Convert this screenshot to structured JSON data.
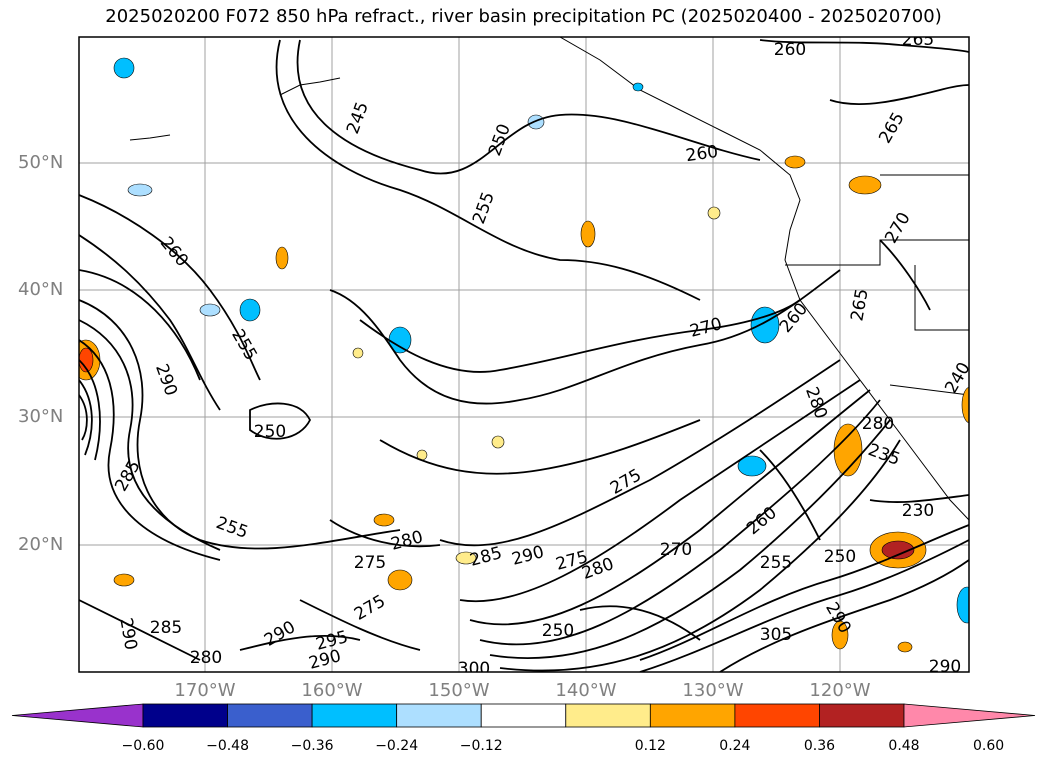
{
  "title": "2025020200 F072 850 hPa refract., river basin precipitation PC (2025020400 - 2025020700)",
  "map": {
    "lat_labels": [
      "50°N",
      "40°N",
      "30°N",
      "20°N"
    ],
    "lon_labels": [
      "170°W",
      "160°W",
      "150°W",
      "140°W",
      "130°W",
      "120°W"
    ],
    "contour_color": "#000000",
    "grid_color": "#a0a0a0",
    "contour_labels": [
      {
        "text": "245"
      },
      {
        "text": "250"
      },
      {
        "text": "255"
      },
      {
        "text": "260"
      },
      {
        "text": "260"
      },
      {
        "text": "260"
      },
      {
        "text": "265"
      },
      {
        "text": "265"
      },
      {
        "text": "270"
      },
      {
        "text": "270"
      },
      {
        "text": "260"
      },
      {
        "text": "255"
      },
      {
        "text": "290"
      },
      {
        "text": "285"
      },
      {
        "text": "250"
      },
      {
        "text": "280"
      },
      {
        "text": "255"
      },
      {
        "text": "275"
      },
      {
        "text": "280"
      },
      {
        "text": "235"
      },
      {
        "text": "230"
      },
      {
        "text": "260"
      },
      {
        "text": "270"
      },
      {
        "text": "255"
      },
      {
        "text": "250"
      },
      {
        "text": "275"
      },
      {
        "text": "280"
      },
      {
        "text": "285"
      },
      {
        "text": "290"
      },
      {
        "text": "275"
      },
      {
        "text": "280"
      },
      {
        "text": "275"
      },
      {
        "text": "290"
      },
      {
        "text": "285"
      },
      {
        "text": "280"
      },
      {
        "text": "290"
      },
      {
        "text": "295"
      },
      {
        "text": "290"
      },
      {
        "text": "300"
      },
      {
        "text": "250"
      },
      {
        "text": "305"
      },
      {
        "text": "290"
      },
      {
        "text": "290"
      },
      {
        "text": "240"
      },
      {
        "text": "265"
      }
    ]
  },
  "colorbar": {
    "colors": [
      "#9932CC",
      "#00008B",
      "#3A5FCD",
      "#00BFFF",
      "#ADDFFF",
      "#FFFFFF",
      "#FFEC8B",
      "#FFA500",
      "#FF4500",
      "#B22222",
      "#FF88AA"
    ],
    "ticks": [
      "−0.60",
      "−0.48",
      "−0.36",
      "−0.24",
      "−0.12",
      "0.12",
      "0.24",
      "0.36",
      "0.48",
      "0.60"
    ]
  }
}
